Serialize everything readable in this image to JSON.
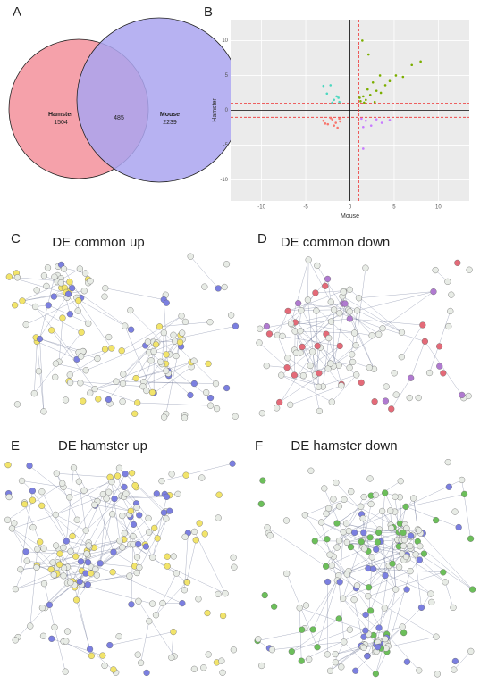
{
  "panels": {
    "a": {
      "label": "A",
      "left": {
        "name": "Hamster",
        "count": 1504
      },
      "overlap": 485,
      "right": {
        "name": "Mouse",
        "count": 2239
      }
    },
    "b": {
      "label": "B",
      "chart": {
        "type": "scatter",
        "x_label": "Mouse",
        "y_label": "Hamster",
        "xlim": [
          -13.5,
          13.5
        ],
        "ylim": [
          -13,
          13
        ],
        "xticks": [
          -10,
          -5,
          0,
          5,
          10
        ],
        "yticks": [
          -10,
          -5,
          0,
          5,
          10
        ],
        "cutoffs": [
          -1,
          1
        ],
        "grid": true,
        "series": [
          {
            "color": "#7cae00",
            "x": [
              1.2,
              1.5,
              1.8,
              2.0,
              2.3,
              2.6,
              3.0,
              3.4,
              4.0,
              4.5,
              5.2,
              6.0,
              7.0,
              8.0,
              1.4,
              2.1,
              2.8,
              1.1,
              1.6,
              3.5
            ],
            "y": [
              1.3,
              2.0,
              1.5,
              3.0,
              2.2,
              4.0,
              2.8,
              5.0,
              3.6,
              4.2,
              5.0,
              4.8,
              6.5,
              7.0,
              10.0,
              8.0,
              1.2,
              1.8,
              1.1,
              2.5
            ]
          },
          {
            "color": "#4dd8c0",
            "x": [
              -1.2,
              -1.5,
              -1.8,
              -2.2,
              -2.6,
              -3.0,
              -1.3,
              -2.0
            ],
            "y": [
              1.2,
              2.0,
              1.5,
              3.6,
              2.4,
              3.5,
              1.8,
              1.1
            ]
          },
          {
            "color": "#f8766d",
            "x": [
              -1.2,
              -1.6,
              -2.0,
              -2.5,
              -3.0,
              -1.4,
              -1.8,
              -2.2,
              -1.1,
              -2.8
            ],
            "y": [
              -1.2,
              -1.8,
              -1.3,
              -2.0,
              -1.5,
              -2.5,
              -2.2,
              -1.1,
              -1.6,
              -1.9
            ]
          },
          {
            "color": "#c77cff",
            "x": [
              1.3,
              1.8,
              2.4,
              3.0,
              3.6,
              1.5,
              4.5,
              1.5
            ],
            "y": [
              -1.2,
              -1.5,
              -2.2,
              -1.3,
              -1.8,
              -2.4,
              -1.4,
              -5.5
            ]
          }
        ]
      }
    },
    "c": {
      "label": "C",
      "title": "DE common up"
    },
    "d": {
      "label": "D",
      "title": "DE common down"
    },
    "e": {
      "label": "E",
      "title": "DE hamster up"
    },
    "f": {
      "label": "F",
      "title": "DE hamster down"
    }
  }
}
